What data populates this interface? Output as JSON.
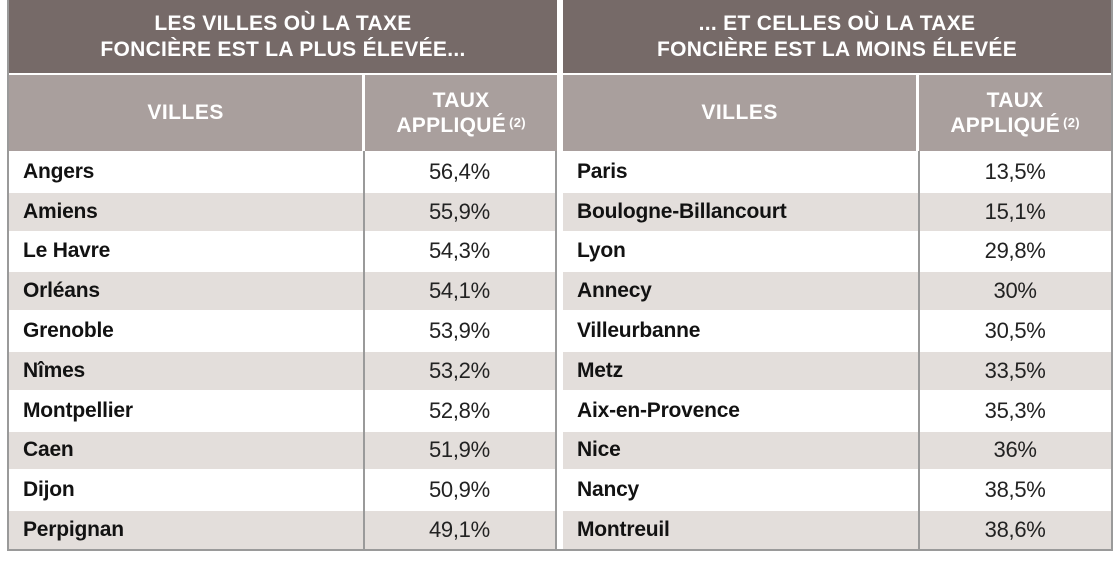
{
  "colors": {
    "header_dark": "#766a68",
    "header_light": "#a99f9d",
    "row_alt": "#e3dedb",
    "border_gray": "#9a9a9a",
    "title_text": "#ffffff",
    "city_text": "#121212",
    "rate_text": "#222222"
  },
  "left_table": {
    "title_line1": "LES VILLES OÙ LA TAXE",
    "title_line2": "FONCIÈRE EST LA PLUS ÉLEVÉE...",
    "header_city": "VILLES",
    "header_rate_line1": "TAUX",
    "header_rate_line2": "APPLIQUÉ",
    "header_rate_note": "(2)",
    "rows": [
      {
        "city": "Angers",
        "rate": "56,4%"
      },
      {
        "city": "Amiens",
        "rate": "55,9%"
      },
      {
        "city": "Le Havre",
        "rate": "54,3%"
      },
      {
        "city": "Orléans",
        "rate": "54,1%"
      },
      {
        "city": "Grenoble",
        "rate": "53,9%"
      },
      {
        "city": "Nîmes",
        "rate": "53,2%"
      },
      {
        "city": "Montpellier",
        "rate": "52,8%"
      },
      {
        "city": "Caen",
        "rate": "51,9%"
      },
      {
        "city": "Dijon",
        "rate": "50,9%"
      },
      {
        "city": "Perpignan",
        "rate": "49,1%"
      }
    ]
  },
  "right_table": {
    "title_line1": "... ET CELLES OÙ LA TAXE",
    "title_line2": "FONCIÈRE EST LA MOINS ÉLEVÉE",
    "header_city": "VILLES",
    "header_rate_line1": "TAUX",
    "header_rate_line2": "APPLIQUÉ",
    "header_rate_note": "(2)",
    "rows": [
      {
        "city": "Paris",
        "rate": "13,5%"
      },
      {
        "city": "Boulogne-Billancourt",
        "rate": "15,1%"
      },
      {
        "city": "Lyon",
        "rate": "29,8%"
      },
      {
        "city": "Annecy",
        "rate": "30%"
      },
      {
        "city": "Villeurbanne",
        "rate": "30,5%"
      },
      {
        "city": "Metz",
        "rate": "33,5%"
      },
      {
        "city": "Aix-en-Provence",
        "rate": "35,3%"
      },
      {
        "city": "Nice",
        "rate": "36%"
      },
      {
        "city": "Nancy",
        "rate": "38,5%"
      },
      {
        "city": "Montreuil",
        "rate": "38,6%"
      }
    ]
  },
  "chart_data": {
    "type": "table",
    "tables": [
      {
        "title": "LES VILLES OÙ LA TAXE FONCIÈRE EST LA PLUS ÉLEVÉE...",
        "columns": [
          "VILLES",
          "TAUX APPLIQUÉ (2)"
        ],
        "categories": [
          "Angers",
          "Amiens",
          "Le Havre",
          "Orléans",
          "Grenoble",
          "Nîmes",
          "Montpellier",
          "Caen",
          "Dijon",
          "Perpignan"
        ],
        "values": [
          56.4,
          55.9,
          54.3,
          54.1,
          53.9,
          53.2,
          52.8,
          51.9,
          50.9,
          49.1
        ],
        "unit": "%"
      },
      {
        "title": "... ET CELLES OÙ LA TAXE FONCIÈRE EST LA MOINS ÉLEVÉE",
        "columns": [
          "VILLES",
          "TAUX APPLIQUÉ (2)"
        ],
        "categories": [
          "Paris",
          "Boulogne-Billancourt",
          "Lyon",
          "Annecy",
          "Villeurbanne",
          "Metz",
          "Aix-en-Provence",
          "Nice",
          "Nancy",
          "Montreuil"
        ],
        "values": [
          13.5,
          15.1,
          29.8,
          30,
          30.5,
          33.5,
          35.3,
          36,
          38.5,
          38.6
        ],
        "unit": "%"
      }
    ]
  }
}
